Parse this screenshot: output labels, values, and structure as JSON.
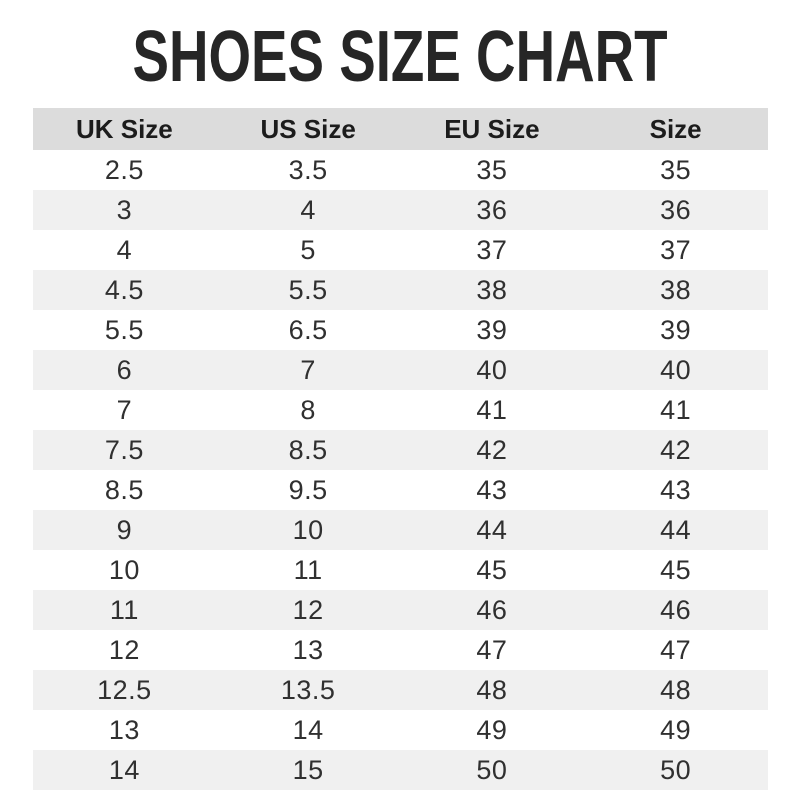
{
  "title": "SHOES SIZE CHART",
  "colors": {
    "header_bg": "#dcdcdc",
    "row_alt_bg": "#f0f0f0",
    "title_text": "#262626",
    "body_text": "#303030"
  },
  "chart_data": {
    "type": "table",
    "title": "SHOES SIZE CHART",
    "columns": [
      "UK Size",
      "US Size",
      "EU Size",
      "Size"
    ],
    "rows": [
      [
        "2.5",
        "3.5",
        "35",
        "35"
      ],
      [
        "3",
        "4",
        "36",
        "36"
      ],
      [
        "4",
        "5",
        "37",
        "37"
      ],
      [
        "4.5",
        "5.5",
        "38",
        "38"
      ],
      [
        "5.5",
        "6.5",
        "39",
        "39"
      ],
      [
        "6",
        "7",
        "40",
        "40"
      ],
      [
        "7",
        "8",
        "41",
        "41"
      ],
      [
        "7.5",
        "8.5",
        "42",
        "42"
      ],
      [
        "8.5",
        "9.5",
        "43",
        "43"
      ],
      [
        "9",
        "10",
        "44",
        "44"
      ],
      [
        "10",
        "11",
        "45",
        "45"
      ],
      [
        "11",
        "12",
        "46",
        "46"
      ],
      [
        "12",
        "13",
        "47",
        "47"
      ],
      [
        "12.5",
        "13.5",
        "48",
        "48"
      ],
      [
        "13",
        "14",
        "49",
        "49"
      ],
      [
        "14",
        "15",
        "50",
        "50"
      ]
    ],
    "layout": {
      "header_background": "#dcdcdc",
      "alternating_row_background": "#f0f0f0",
      "grid": false,
      "column_alignment": "center"
    }
  }
}
